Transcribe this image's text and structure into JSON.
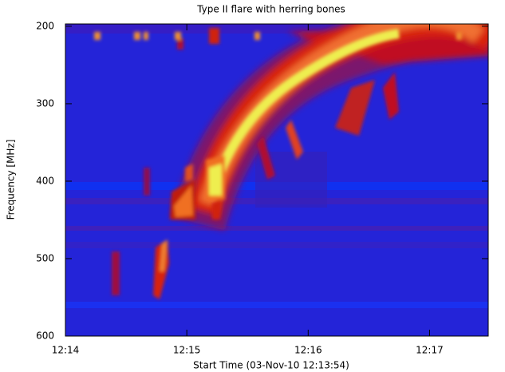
{
  "chart_data": {
    "type": "spectrogram",
    "title": "Type II flare with herring bones",
    "x_label": "Start Time (03-Nov-10 12:13:54)",
    "y_label": "Frequency [MHz]",
    "xlim": [
      "12:14",
      "12:17:29"
    ],
    "xticks": [
      "12:14",
      "12:15",
      "12:16",
      "12:17"
    ],
    "ylim": [
      600,
      197
    ],
    "yticks": [
      200,
      300,
      400,
      500,
      600
    ]
  }
}
